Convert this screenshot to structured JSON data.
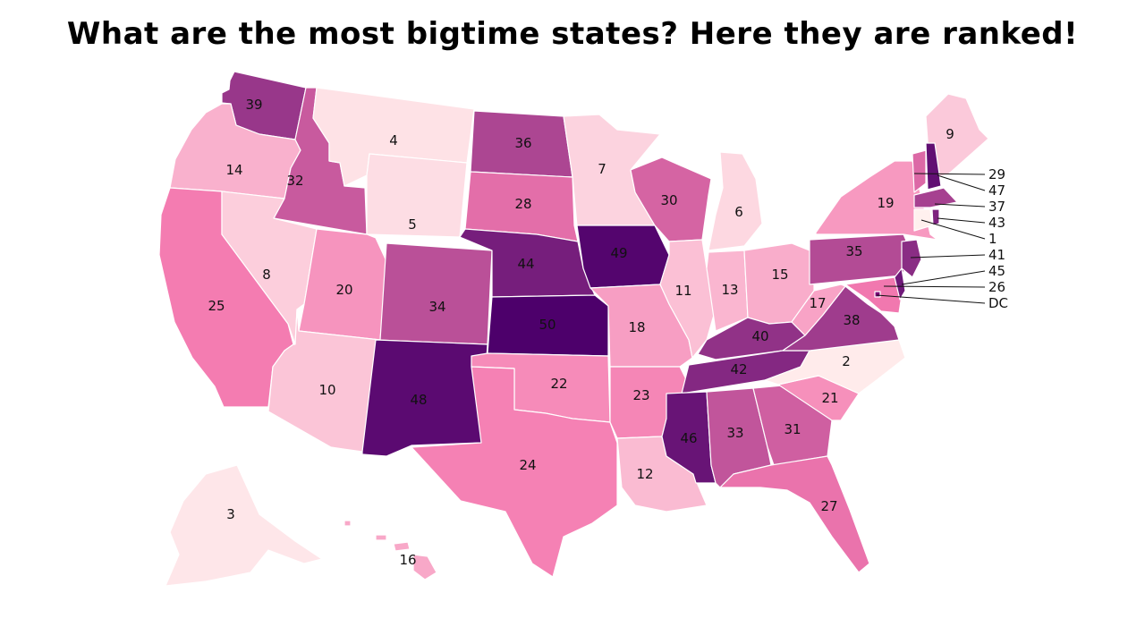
{
  "title": "What are the most bigtime states? Here they are ranked!",
  "scale": {
    "low_color": "#fff0ee",
    "mid_color": "#f47ab0",
    "high_color": "#4d006b"
  },
  "states": [
    {
      "id": "WA",
      "rank": "39"
    },
    {
      "id": "OR",
      "rank": "14"
    },
    {
      "id": "CA",
      "rank": "25"
    },
    {
      "id": "ID",
      "rank": "32"
    },
    {
      "id": "NV",
      "rank": "8"
    },
    {
      "id": "MT",
      "rank": "4"
    },
    {
      "id": "WY",
      "rank": "5"
    },
    {
      "id": "UT",
      "rank": "20"
    },
    {
      "id": "AZ",
      "rank": "10"
    },
    {
      "id": "CO",
      "rank": "34"
    },
    {
      "id": "NM",
      "rank": "48"
    },
    {
      "id": "ND",
      "rank": "36"
    },
    {
      "id": "SD",
      "rank": "28"
    },
    {
      "id": "NE",
      "rank": "44"
    },
    {
      "id": "KS",
      "rank": "50"
    },
    {
      "id": "OK",
      "rank": "22"
    },
    {
      "id": "TX",
      "rank": "24"
    },
    {
      "id": "MN",
      "rank": "7"
    },
    {
      "id": "IA",
      "rank": "49"
    },
    {
      "id": "MO",
      "rank": "18"
    },
    {
      "id": "AR",
      "rank": "23"
    },
    {
      "id": "LA",
      "rank": "12"
    },
    {
      "id": "WI",
      "rank": "30"
    },
    {
      "id": "IL",
      "rank": "11"
    },
    {
      "id": "MI",
      "rank": "6"
    },
    {
      "id": "IN",
      "rank": "13"
    },
    {
      "id": "OH",
      "rank": "15"
    },
    {
      "id": "KY",
      "rank": "40"
    },
    {
      "id": "TN",
      "rank": "42"
    },
    {
      "id": "MS",
      "rank": "46"
    },
    {
      "id": "AL",
      "rank": "33"
    },
    {
      "id": "GA",
      "rank": "31"
    },
    {
      "id": "FL",
      "rank": "27"
    },
    {
      "id": "SC",
      "rank": "21"
    },
    {
      "id": "NC",
      "rank": "2"
    },
    {
      "id": "VA",
      "rank": "38"
    },
    {
      "id": "WV",
      "rank": "17"
    },
    {
      "id": "PA",
      "rank": "35"
    },
    {
      "id": "NY",
      "rank": "19"
    },
    {
      "id": "ME",
      "rank": "9"
    },
    {
      "id": "AK",
      "rank": "3"
    },
    {
      "id": "HI",
      "rank": "16"
    },
    {
      "id": "NJ",
      "rank": ""
    },
    {
      "id": "MD",
      "rank": ""
    },
    {
      "id": "DE",
      "rank": ""
    },
    {
      "id": "VT",
      "rank": ""
    },
    {
      "id": "NH",
      "rank": ""
    },
    {
      "id": "MA",
      "rank": ""
    },
    {
      "id": "CT",
      "rank": ""
    },
    {
      "id": "RI",
      "rank": ""
    },
    {
      "id": "DC",
      "rank": ""
    }
  ],
  "callouts": [
    {
      "id": "VT",
      "label": "29",
      "rank": 29
    },
    {
      "id": "NH",
      "label": "47",
      "rank": 47
    },
    {
      "id": "MA",
      "label": "37",
      "rank": 37
    },
    {
      "id": "RI",
      "label": "43",
      "rank": 43
    },
    {
      "id": "CT",
      "label": "1",
      "rank": 1
    },
    {
      "id": "NJ",
      "label": "41",
      "rank": 41
    },
    {
      "id": "DE",
      "label": "45",
      "rank": 45
    },
    {
      "id": "MD",
      "label": "26",
      "rank": 26
    },
    {
      "id": "DC",
      "label": "DC",
      "rank": null
    }
  ]
}
